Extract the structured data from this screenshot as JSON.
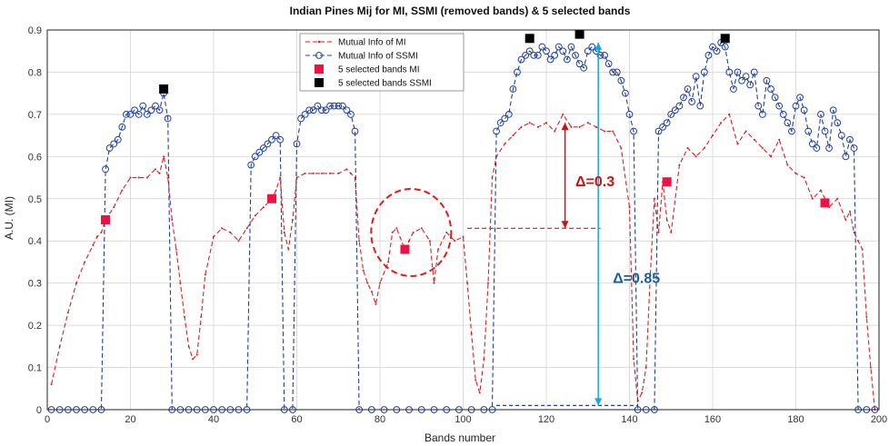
{
  "chart_data": {
    "type": "line",
    "title": "Indian Pines Mij for MI, SSMI (removed bands) & 5 selected bands",
    "xlabel": "Bands number",
    "ylabel": "A.U. (MI)",
    "xlim": [
      0,
      200
    ],
    "ylim": [
      0,
      0.9
    ],
    "xticks": [
      0,
      20,
      40,
      60,
      80,
      100,
      120,
      140,
      160,
      180,
      200
    ],
    "yticks": [
      0,
      0.1,
      0.2,
      0.3,
      0.4,
      0.5,
      0.6,
      0.7,
      0.8,
      0.9
    ],
    "grid": true,
    "legend_position": "top-center",
    "series": [
      {
        "name": "Mutual Info of MI",
        "color": "#e41a1c",
        "style": "dashed-dot",
        "points": [
          [
            1,
            0.06
          ],
          [
            3,
            0.15
          ],
          [
            5,
            0.23
          ],
          [
            7,
            0.3
          ],
          [
            9,
            0.35
          ],
          [
            11,
            0.39
          ],
          [
            12,
            0.41
          ],
          [
            13,
            0.42
          ],
          [
            14,
            0.45
          ],
          [
            16,
            0.48
          ],
          [
            18,
            0.52
          ],
          [
            20,
            0.55
          ],
          [
            22,
            0.55
          ],
          [
            24,
            0.55
          ],
          [
            26,
            0.57
          ],
          [
            27,
            0.56
          ],
          [
            28,
            0.6
          ],
          [
            29,
            0.55
          ],
          [
            30,
            0.45
          ],
          [
            31,
            0.38
          ],
          [
            32,
            0.3
          ],
          [
            33,
            0.22
          ],
          [
            34,
            0.15
          ],
          [
            35,
            0.12
          ],
          [
            36,
            0.13
          ],
          [
            37,
            0.22
          ],
          [
            38,
            0.32
          ],
          [
            40,
            0.41
          ],
          [
            42,
            0.43
          ],
          [
            44,
            0.42
          ],
          [
            46,
            0.4
          ],
          [
            48,
            0.43
          ],
          [
            50,
            0.46
          ],
          [
            52,
            0.48
          ],
          [
            54,
            0.5
          ],
          [
            55,
            0.52
          ],
          [
            56,
            0.55
          ],
          [
            57,
            0.42
          ],
          [
            58,
            0.38
          ],
          [
            59,
            0.45
          ],
          [
            60,
            0.55
          ],
          [
            62,
            0.56
          ],
          [
            64,
            0.56
          ],
          [
            66,
            0.56
          ],
          [
            68,
            0.56
          ],
          [
            70,
            0.56
          ],
          [
            72,
            0.57
          ],
          [
            73,
            0.56
          ],
          [
            74,
            0.55
          ],
          [
            75,
            0.4
          ],
          [
            76,
            0.33
          ],
          [
            77,
            0.3
          ],
          [
            78,
            0.28
          ],
          [
            79,
            0.25
          ],
          [
            80,
            0.3
          ],
          [
            82,
            0.35
          ],
          [
            83,
            0.42
          ],
          [
            84,
            0.43
          ],
          [
            86,
            0.38
          ],
          [
            87,
            0.4
          ],
          [
            88,
            0.42
          ],
          [
            90,
            0.43
          ],
          [
            92,
            0.4
          ],
          [
            93,
            0.3
          ],
          [
            94,
            0.38
          ],
          [
            96,
            0.42
          ],
          [
            98,
            0.4
          ],
          [
            100,
            0.41
          ],
          [
            101,
            0.3
          ],
          [
            102,
            0.18
          ],
          [
            103,
            0.07
          ],
          [
            104,
            0.04
          ],
          [
            105,
            0.12
          ],
          [
            106,
            0.3
          ],
          [
            107,
            0.55
          ],
          [
            108,
            0.6
          ],
          [
            110,
            0.63
          ],
          [
            112,
            0.65
          ],
          [
            114,
            0.67
          ],
          [
            116,
            0.68
          ],
          [
            118,
            0.67
          ],
          [
            120,
            0.68
          ],
          [
            122,
            0.66
          ],
          [
            124,
            0.7
          ],
          [
            126,
            0.67
          ],
          [
            128,
            0.67
          ],
          [
            130,
            0.68
          ],
          [
            132,
            0.67
          ],
          [
            134,
            0.66
          ],
          [
            136,
            0.66
          ],
          [
            138,
            0.62
          ],
          [
            140,
            0.48
          ],
          [
            141,
            0.12
          ],
          [
            142,
            0.02
          ],
          [
            143,
            0.04
          ],
          [
            144,
            0.1
          ],
          [
            145,
            0.32
          ],
          [
            146,
            0.5
          ],
          [
            147,
            0.42
          ],
          [
            148,
            0.54
          ],
          [
            149,
            0.45
          ],
          [
            150,
            0.42
          ],
          [
            152,
            0.58
          ],
          [
            154,
            0.62
          ],
          [
            156,
            0.6
          ],
          [
            158,
            0.62
          ],
          [
            160,
            0.65
          ],
          [
            162,
            0.68
          ],
          [
            164,
            0.7
          ],
          [
            166,
            0.63
          ],
          [
            168,
            0.66
          ],
          [
            170,
            0.64
          ],
          [
            172,
            0.62
          ],
          [
            174,
            0.6
          ],
          [
            176,
            0.64
          ],
          [
            178,
            0.58
          ],
          [
            180,
            0.56
          ],
          [
            182,
            0.55
          ],
          [
            184,
            0.5
          ],
          [
            186,
            0.52
          ],
          [
            188,
            0.48
          ],
          [
            190,
            0.5
          ],
          [
            192,
            0.45
          ],
          [
            193,
            0.47
          ],
          [
            194,
            0.42
          ],
          [
            195,
            0.4
          ],
          [
            196,
            0.38
          ],
          [
            197,
            0.22
          ],
          [
            198,
            0.1
          ],
          [
            199,
            0.0
          ]
        ]
      },
      {
        "name": "Mutual Info of SSMI",
        "color": "#1f3fa8",
        "style": "dashed-circle",
        "points": [
          [
            1,
            0.0
          ],
          [
            3,
            0.0
          ],
          [
            5,
            0.0
          ],
          [
            7,
            0.0
          ],
          [
            9,
            0.0
          ],
          [
            11,
            0.0
          ],
          [
            13,
            0.0
          ],
          [
            14,
            0.57
          ],
          [
            15,
            0.62
          ],
          [
            16,
            0.63
          ],
          [
            17,
            0.64
          ],
          [
            18,
            0.67
          ],
          [
            19,
            0.7
          ],
          [
            20,
            0.7
          ],
          [
            21,
            0.71
          ],
          [
            22,
            0.7
          ],
          [
            23,
            0.72
          ],
          [
            24,
            0.7
          ],
          [
            25,
            0.71
          ],
          [
            26,
            0.72
          ],
          [
            27,
            0.71
          ],
          [
            28,
            0.75
          ],
          [
            29,
            0.69
          ],
          [
            30,
            0.0
          ],
          [
            32,
            0.0
          ],
          [
            34,
            0.0
          ],
          [
            36,
            0.0
          ],
          [
            38,
            0.0
          ],
          [
            40,
            0.0
          ],
          [
            42,
            0.0
          ],
          [
            44,
            0.0
          ],
          [
            46,
            0.0
          ],
          [
            48,
            0.0
          ],
          [
            49,
            0.58
          ],
          [
            50,
            0.6
          ],
          [
            51,
            0.61
          ],
          [
            52,
            0.62
          ],
          [
            53,
            0.63
          ],
          [
            54,
            0.64
          ],
          [
            55,
            0.65
          ],
          [
            56,
            0.64
          ],
          [
            57,
            0.0
          ],
          [
            59,
            0.0
          ],
          [
            60,
            0.63
          ],
          [
            61,
            0.69
          ],
          [
            62,
            0.7
          ],
          [
            63,
            0.71
          ],
          [
            64,
            0.71
          ],
          [
            65,
            0.72
          ],
          [
            66,
            0.71
          ],
          [
            67,
            0.71
          ],
          [
            68,
            0.72
          ],
          [
            69,
            0.72
          ],
          [
            70,
            0.72
          ],
          [
            71,
            0.72
          ],
          [
            72,
            0.71
          ],
          [
            73,
            0.7
          ],
          [
            74,
            0.66
          ],
          [
            75,
            0.0
          ],
          [
            78,
            0.0
          ],
          [
            81,
            0.0
          ],
          [
            84,
            0.0
          ],
          [
            87,
            0.0
          ],
          [
            90,
            0.0
          ],
          [
            93,
            0.0
          ],
          [
            96,
            0.0
          ],
          [
            99,
            0.0
          ],
          [
            102,
            0.0
          ],
          [
            105,
            0.0
          ],
          [
            107,
            0.0
          ],
          [
            108,
            0.66
          ],
          [
            109,
            0.68
          ],
          [
            110,
            0.69
          ],
          [
            111,
            0.7
          ],
          [
            112,
            0.76
          ],
          [
            113,
            0.8
          ],
          [
            114,
            0.83
          ],
          [
            115,
            0.84
          ],
          [
            116,
            0.85
          ],
          [
            117,
            0.84
          ],
          [
            118,
            0.84
          ],
          [
            119,
            0.86
          ],
          [
            120,
            0.85
          ],
          [
            121,
            0.83
          ],
          [
            122,
            0.84
          ],
          [
            123,
            0.86
          ],
          [
            124,
            0.85
          ],
          [
            125,
            0.83
          ],
          [
            126,
            0.86
          ],
          [
            127,
            0.84
          ],
          [
            128,
            0.82
          ],
          [
            129,
            0.81
          ],
          [
            130,
            0.85
          ],
          [
            131,
            0.86
          ],
          [
            132,
            0.85
          ],
          [
            133,
            0.84
          ],
          [
            134,
            0.84
          ],
          [
            135,
            0.82
          ],
          [
            136,
            0.8
          ],
          [
            137,
            0.8
          ],
          [
            138,
            0.78
          ],
          [
            139,
            0.75
          ],
          [
            140,
            0.7
          ],
          [
            141,
            0.66
          ],
          [
            142,
            0.0
          ],
          [
            144,
            0.0
          ],
          [
            146,
            0.0
          ],
          [
            147,
            0.66
          ],
          [
            148,
            0.67
          ],
          [
            149,
            0.68
          ],
          [
            150,
            0.7
          ],
          [
            151,
            0.71
          ],
          [
            152,
            0.72
          ],
          [
            153,
            0.74
          ],
          [
            154,
            0.76
          ],
          [
            155,
            0.73
          ],
          [
            156,
            0.79
          ],
          [
            157,
            0.72
          ],
          [
            158,
            0.8
          ],
          [
            159,
            0.84
          ],
          [
            160,
            0.86
          ],
          [
            161,
            0.85
          ],
          [
            162,
            0.87
          ],
          [
            163,
            0.86
          ],
          [
            164,
            0.8
          ],
          [
            165,
            0.76
          ],
          [
            166,
            0.8
          ],
          [
            167,
            0.78
          ],
          [
            168,
            0.79
          ],
          [
            169,
            0.77
          ],
          [
            170,
            0.8
          ],
          [
            171,
            0.72
          ],
          [
            172,
            0.7
          ],
          [
            173,
            0.78
          ],
          [
            174,
            0.76
          ],
          [
            175,
            0.74
          ],
          [
            176,
            0.72
          ],
          [
            177,
            0.7
          ],
          [
            178,
            0.68
          ],
          [
            179,
            0.66
          ],
          [
            180,
            0.72
          ],
          [
            181,
            0.74
          ],
          [
            182,
            0.71
          ],
          [
            183,
            0.66
          ],
          [
            184,
            0.63
          ],
          [
            185,
            0.62
          ],
          [
            186,
            0.7
          ],
          [
            187,
            0.66
          ],
          [
            188,
            0.62
          ],
          [
            189,
            0.71
          ],
          [
            190,
            0.68
          ],
          [
            191,
            0.65
          ],
          [
            192,
            0.6
          ],
          [
            193,
            0.64
          ],
          [
            194,
            0.62
          ],
          [
            195,
            0.0
          ],
          [
            197,
            0.0
          ],
          [
            199,
            0.0
          ]
        ]
      },
      {
        "name": "5 selected bands MI",
        "color": "#ee1144",
        "style": "square-marker",
        "points": [
          [
            14,
            0.45
          ],
          [
            54,
            0.5
          ],
          [
            86,
            0.38
          ],
          [
            149,
            0.54
          ],
          [
            187,
            0.49
          ]
        ]
      },
      {
        "name": "5 selected bands SSMI",
        "color": "#000000",
        "style": "square-marker",
        "points": [
          [
            28,
            0.76
          ],
          [
            116,
            0.88
          ],
          [
            128,
            0.89
          ],
          [
            163,
            0.88
          ]
        ]
      }
    ],
    "annotations": [
      {
        "text": "Δ=0.3",
        "color": "#d01010"
      },
      {
        "text": "Δ=0.85",
        "color": "#1c5fa0"
      }
    ]
  }
}
